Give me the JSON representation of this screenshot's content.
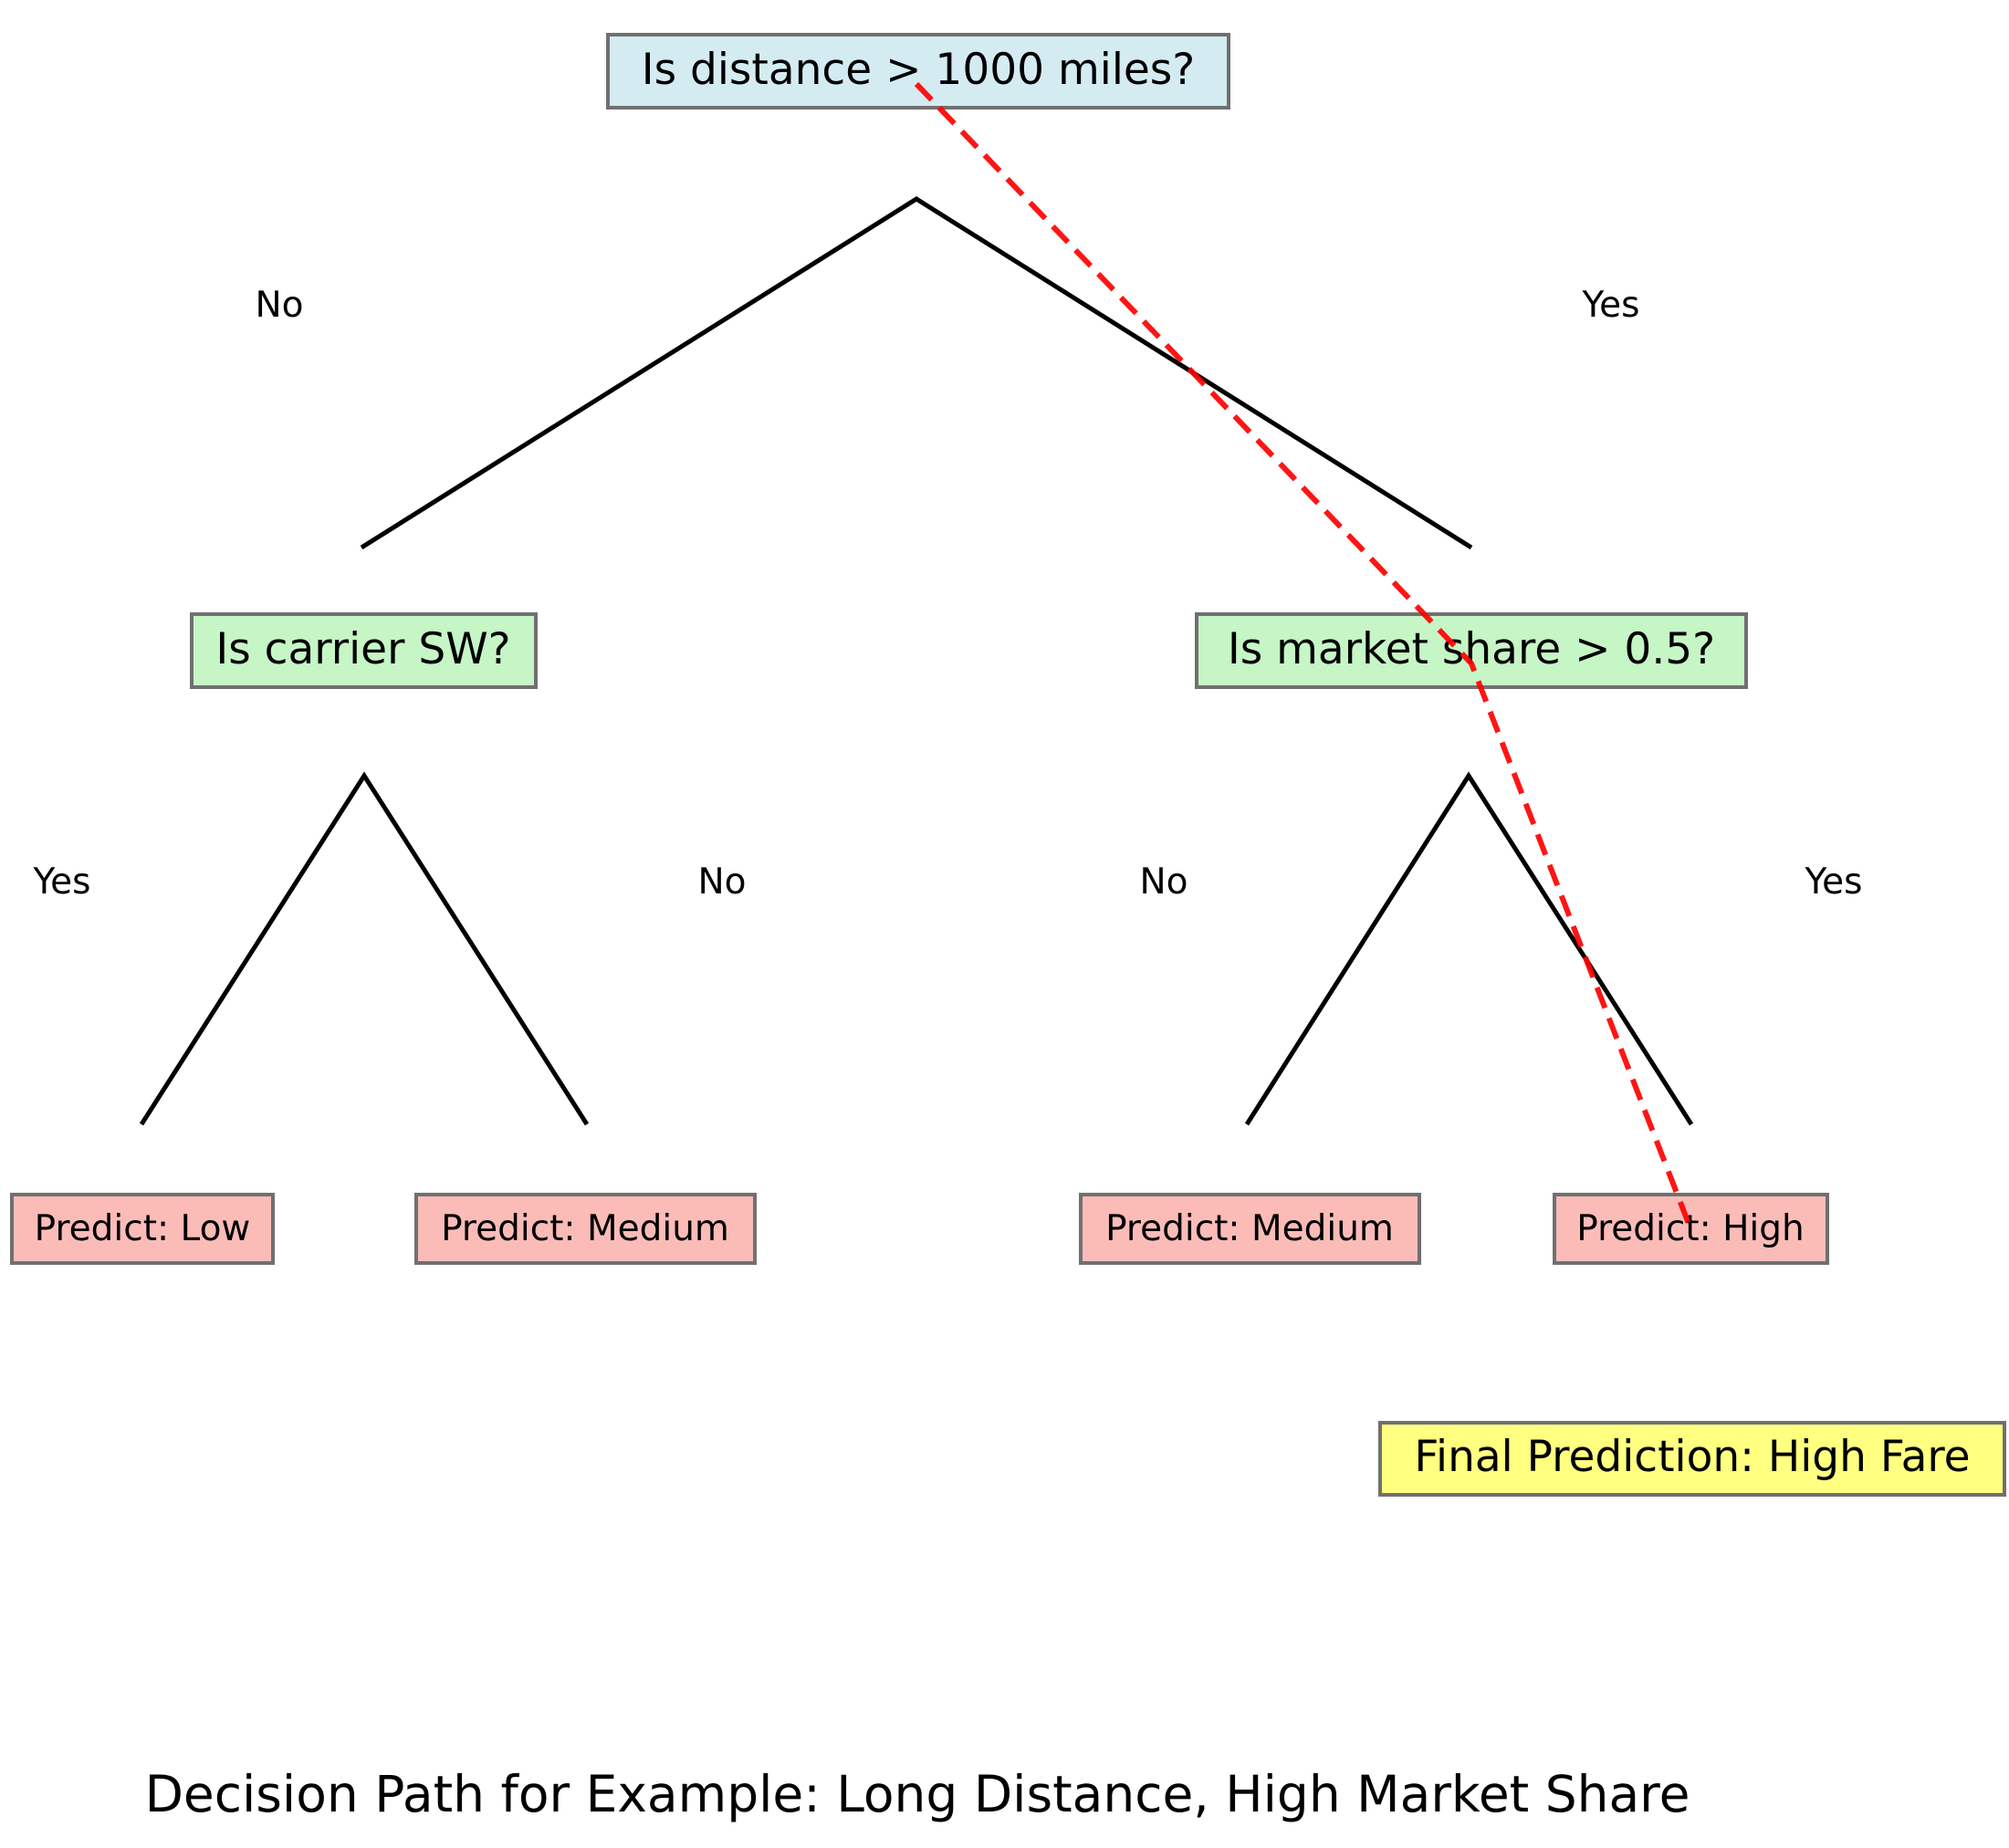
{
  "nodes": {
    "root": {
      "label": "Is distance > 1000 miles?"
    },
    "left": {
      "label": "Is carrier SW?"
    },
    "right": {
      "label": "Is market share > 0.5?"
    },
    "leaf_ll": {
      "label": "Predict: Low"
    },
    "leaf_lr": {
      "label": "Predict: Medium"
    },
    "leaf_rl": {
      "label": "Predict: Medium"
    },
    "leaf_rr": {
      "label": "Predict: High"
    },
    "final": {
      "label": "Final Prediction: High Fare"
    }
  },
  "branches": {
    "root_left": "No",
    "root_right": "Yes",
    "left_left": "Yes",
    "left_right": "No",
    "right_left": "No",
    "right_right": "Yes"
  },
  "title": "Decision Path for Example: Long Distance, High Market Share",
  "colors": {
    "root_fill": "#d4ebf2",
    "decision_fill": "#c6f5c6",
    "leaf_fill": "#fbbcb8",
    "final_fill": "#ffff80",
    "box_border": "#707070",
    "edge": "#000000",
    "path": "#ff0000"
  }
}
